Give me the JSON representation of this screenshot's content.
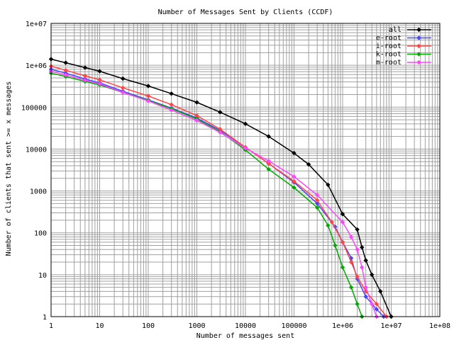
{
  "chart_data": {
    "type": "line",
    "title": "Number of Messages Sent by Clients (CCDF)",
    "xlabel": "Number of messages sent",
    "ylabel": "Number of clients that sent >= x messages",
    "x_scale": "log",
    "y_scale": "log",
    "xlim": [
      1,
      100000000
    ],
    "ylim": [
      1,
      10000000
    ],
    "x_ticks": [
      "1",
      "10",
      "100",
      "1000",
      "10000",
      "100000",
      "1e+06",
      "1e+07",
      "1e+08"
    ],
    "y_ticks": [
      "1",
      "10",
      "100",
      "1000",
      "10000",
      "100000",
      "1e+06",
      "1e+07"
    ],
    "grid": true,
    "legend_position": "top-right",
    "series": [
      {
        "name": "all",
        "color": "#000000",
        "points": [
          [
            1,
            1400000
          ],
          [
            2,
            1150000
          ],
          [
            5,
            880000
          ],
          [
            10,
            720000
          ],
          [
            30,
            480000
          ],
          [
            100,
            320000
          ],
          [
            300,
            210000
          ],
          [
            1000,
            130000
          ],
          [
            3000,
            76000
          ],
          [
            10000,
            40000
          ],
          [
            30000,
            20000
          ],
          [
            100000,
            8000
          ],
          [
            200000,
            4300
          ],
          [
            500000,
            1400
          ],
          [
            1000000,
            280
          ],
          [
            2000000,
            120
          ],
          [
            2500000,
            45
          ],
          [
            3000000,
            22
          ],
          [
            4000000,
            10
          ],
          [
            6000000,
            4
          ],
          [
            10000000,
            1
          ]
        ]
      },
      {
        "name": "e-root",
        "color": "#4646ff",
        "points": [
          [
            1,
            800000
          ],
          [
            2,
            650000
          ],
          [
            5,
            470000
          ],
          [
            10,
            380000
          ],
          [
            30,
            240000
          ],
          [
            100,
            150000
          ],
          [
            300,
            95000
          ],
          [
            1000,
            55000
          ],
          [
            3000,
            28000
          ],
          [
            10000,
            11000
          ],
          [
            30000,
            4500
          ],
          [
            100000,
            1600
          ],
          [
            300000,
            500
          ],
          [
            700000,
            140
          ],
          [
            1000000,
            60
          ],
          [
            1500000,
            25
          ],
          [
            2000000,
            8
          ],
          [
            3000000,
            3
          ],
          [
            5000000,
            1.5
          ],
          [
            7000000,
            1
          ]
        ]
      },
      {
        "name": "i-root",
        "color": "#ff4646",
        "points": [
          [
            1,
            950000
          ],
          [
            2,
            760000
          ],
          [
            5,
            560000
          ],
          [
            10,
            450000
          ],
          [
            30,
            290000
          ],
          [
            100,
            185000
          ],
          [
            300,
            115000
          ],
          [
            1000,
            63000
          ],
          [
            3000,
            30000
          ],
          [
            10000,
            11000
          ],
          [
            30000,
            4500
          ],
          [
            100000,
            1700
          ],
          [
            300000,
            600
          ],
          [
            600000,
            180
          ],
          [
            1000000,
            60
          ],
          [
            1500000,
            20
          ],
          [
            2000000,
            9
          ],
          [
            3000000,
            4
          ],
          [
            5000000,
            2
          ],
          [
            8000000,
            1
          ]
        ]
      },
      {
        "name": "k-root",
        "color": "#00aa00",
        "points": [
          [
            1,
            650000
          ],
          [
            2,
            540000
          ],
          [
            5,
            410000
          ],
          [
            10,
            340000
          ],
          [
            30,
            225000
          ],
          [
            100,
            145000
          ],
          [
            300,
            92000
          ],
          [
            1000,
            52000
          ],
          [
            3000,
            26000
          ],
          [
            10000,
            9500
          ],
          [
            30000,
            3300
          ],
          [
            100000,
            1200
          ],
          [
            300000,
            400
          ],
          [
            500000,
            150
          ],
          [
            700000,
            50
          ],
          [
            1000000,
            15
          ],
          [
            1500000,
            5
          ],
          [
            2000000,
            2
          ],
          [
            2500000,
            1
          ]
        ]
      },
      {
        "name": "m-root",
        "color": "#ff46ff",
        "points": [
          [
            1,
            720000
          ],
          [
            2,
            590000
          ],
          [
            5,
            440000
          ],
          [
            10,
            360000
          ],
          [
            30,
            225000
          ],
          [
            100,
            140000
          ],
          [
            300,
            85000
          ],
          [
            1000,
            48000
          ],
          [
            3000,
            25000
          ],
          [
            10000,
            10500
          ],
          [
            30000,
            5200
          ],
          [
            100000,
            2200
          ],
          [
            300000,
            800
          ],
          [
            1000000,
            180
          ],
          [
            1500000,
            80
          ],
          [
            2000000,
            40
          ],
          [
            2500000,
            15
          ],
          [
            3000000,
            5
          ],
          [
            4000000,
            2
          ],
          [
            5000000,
            1
          ]
        ]
      }
    ]
  }
}
